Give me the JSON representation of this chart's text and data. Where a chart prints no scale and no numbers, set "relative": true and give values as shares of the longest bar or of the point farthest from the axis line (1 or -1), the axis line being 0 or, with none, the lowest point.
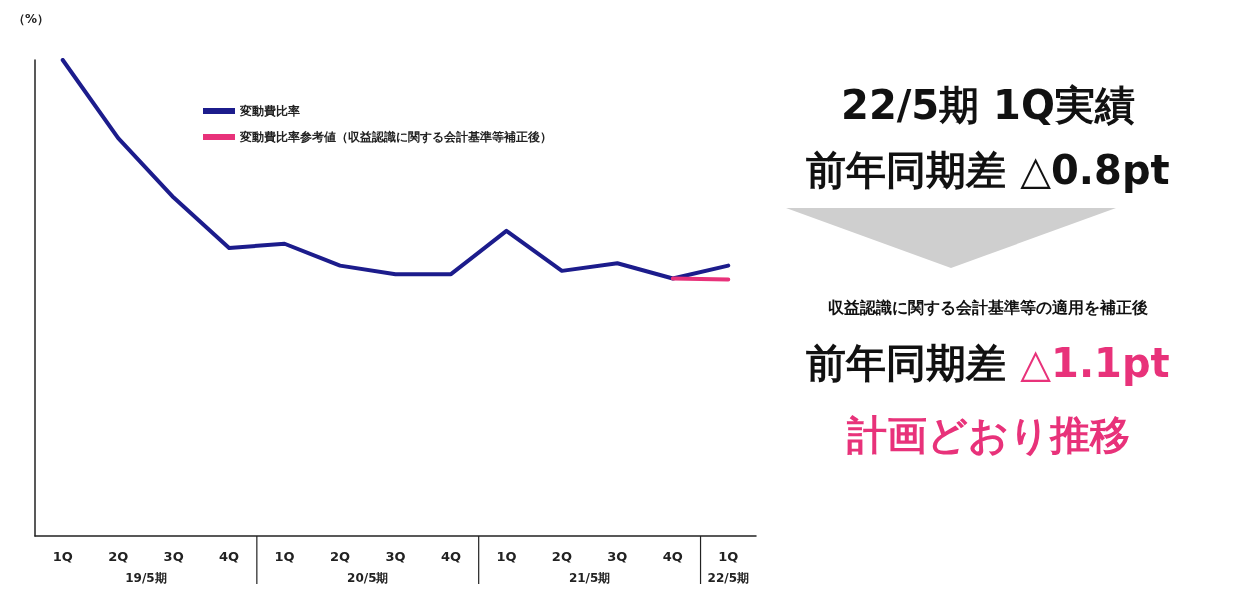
{
  "chart_data": {
    "type": "line",
    "relative": true,
    "ylabel": "（%）",
    "legend": "top left",
    "marker": "none",
    "line_style": "solid",
    "grid": false,
    "categories": [
      "1Q",
      "2Q",
      "3Q",
      "4Q",
      "1Q",
      "2Q",
      "3Q",
      "4Q",
      "1Q",
      "2Q",
      "3Q",
      "4Q",
      "1Q"
    ],
    "series": [
      {
        "name": "変動費比率",
        "color": "#1c1c8c",
        "values": [
          1.0,
          0.836,
          0.711,
          0.605,
          0.614,
          0.568,
          0.55,
          0.55,
          0.641,
          0.557,
          0.573,
          0.541,
          0.568
        ]
      },
      {
        "name": "変動費比率参考値（収益認識に関する会計基準等補正後）",
        "color": "#e8327a",
        "values": [
          null,
          null,
          null,
          null,
          null,
          null,
          null,
          null,
          null,
          null,
          null,
          0.541,
          0.539
        ]
      }
    ],
    "annotations": [
      "19/5期",
      "20/5期",
      "21/5期",
      "22/5期",
      "22/5期 1Q実績",
      "前年同期差 △0.8pt",
      "収益認識に関する会計基準等の適用を補正後",
      "前年同期差",
      "△1.1pt",
      "計画どおり推移"
    ]
  }
}
